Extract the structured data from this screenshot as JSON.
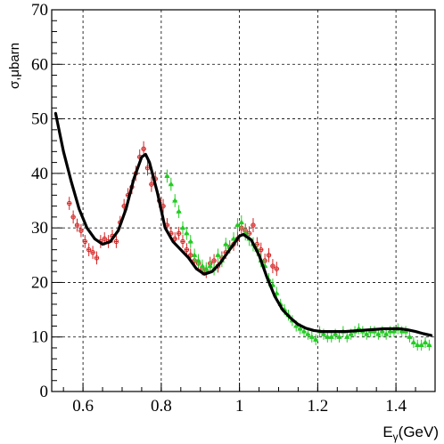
{
  "chart_data": {
    "type": "scatter",
    "xlabel": "E",
    "xlabel_sub": "γ",
    "xlabel_unit": "(GeV)",
    "ylabel": "σ,μbarn",
    "xlim": [
      0.52,
      1.5
    ],
    "ylim": [
      0,
      70
    ],
    "grid": true,
    "x_ticks": [
      0.6,
      0.8,
      1.0,
      1.2,
      1.4
    ],
    "x_tick_labels": [
      "0.6",
      "0.8",
      "1",
      "1.2",
      "1.4"
    ],
    "y_ticks": [
      0,
      10,
      20,
      30,
      40,
      50,
      60,
      70
    ],
    "y_tick_labels": [
      "0",
      "10",
      "20",
      "30",
      "40",
      "50",
      "60",
      "70"
    ],
    "colors": {
      "series_red": "#d42020",
      "series_green": "#22cc22",
      "fit_curve": "#000000",
      "grid": "#000000"
    },
    "series": [
      {
        "kind": "points_circle",
        "color": "#d42020",
        "x": [
          0.565,
          0.575,
          0.585,
          0.595,
          0.605,
          0.615,
          0.625,
          0.635,
          0.645,
          0.655,
          0.665,
          0.675,
          0.685,
          0.695,
          0.705,
          0.715,
          0.725,
          0.735,
          0.745,
          0.755,
          0.765,
          0.775,
          0.785,
          0.795,
          0.805,
          0.815,
          0.825,
          0.835,
          0.845,
          0.855,
          0.865,
          0.875,
          0.885,
          0.895,
          0.905,
          0.915,
          0.925,
          0.935,
          0.945,
          0.955,
          0.965,
          0.975,
          0.985,
          0.995,
          1.005,
          1.015,
          1.025,
          1.035,
          1.045,
          1.055,
          1.065,
          1.075,
          1.085,
          1.095
        ],
        "y": [
          34.5,
          32,
          30.5,
          29.5,
          27.5,
          26,
          25.5,
          24.5,
          27.5,
          28,
          27.5,
          28.5,
          27.5,
          31,
          34,
          36,
          37.5,
          40,
          43,
          44.5,
          41,
          38,
          39,
          35,
          34,
          30.5,
          29,
          28,
          29,
          27.5,
          26,
          25,
          24,
          23.5,
          22.5,
          22,
          23.5,
          24,
          23,
          24.5,
          25.5,
          26.5,
          27,
          28,
          30,
          29.5,
          29,
          30.5,
          27,
          26,
          24,
          25,
          23,
          22.5
        ],
        "err": [
          1.2,
          1.2,
          1.2,
          1.2,
          1.2,
          1.2,
          1.2,
          1.2,
          1.2,
          1.2,
          1.2,
          1.2,
          1.2,
          1.2,
          1.3,
          1.3,
          1.3,
          1.4,
          1.4,
          1.4,
          1.4,
          1.4,
          1.4,
          1.3,
          1.3,
          1.3,
          1.2,
          1.2,
          1.2,
          1.2,
          1.2,
          1.2,
          1.2,
          1.2,
          1.2,
          1.2,
          1.2,
          1.2,
          1.2,
          1.2,
          1.2,
          1.2,
          1.2,
          1.3,
          1.3,
          1.3,
          1.3,
          1.3,
          1.3,
          1.3,
          1.3,
          1.3,
          1.3,
          1.3
        ]
      },
      {
        "kind": "points_triangle",
        "color": "#22cc22",
        "x": [
          0.815,
          0.825,
          0.835,
          0.845,
          0.855,
          0.865,
          0.875,
          0.885,
          0.895,
          0.905,
          0.915,
          0.925,
          0.935,
          0.945,
          0.955,
          0.965,
          0.975,
          0.985,
          0.995,
          1.005,
          1.015,
          1.025,
          1.035,
          1.045,
          1.055,
          1.065,
          1.075,
          1.085,
          1.095,
          1.105,
          1.115,
          1.125,
          1.135,
          1.145,
          1.155,
          1.165,
          1.175,
          1.185,
          1.195,
          1.205,
          1.215,
          1.225,
          1.235,
          1.245,
          1.255,
          1.265,
          1.275,
          1.285,
          1.295,
          1.305,
          1.315,
          1.325,
          1.335,
          1.345,
          1.355,
          1.365,
          1.375,
          1.385,
          1.395,
          1.405,
          1.415,
          1.425,
          1.435,
          1.445,
          1.455,
          1.465,
          1.475,
          1.485
        ],
        "y": [
          39.5,
          38,
          35,
          33,
          30,
          29,
          27.5,
          25,
          24,
          23,
          22.5,
          23,
          22.5,
          25,
          24,
          27,
          26.5,
          28,
          30.5,
          31,
          29,
          28,
          27,
          26,
          24,
          23,
          20.5,
          19.5,
          18,
          16,
          15,
          14,
          13,
          12,
          11.5,
          11,
          10.5,
          10,
          9.5,
          11,
          10.5,
          10,
          10,
          10.5,
          10,
          11,
          10,
          10.5,
          11,
          11.5,
          11,
          10.5,
          11,
          11,
          10.5,
          11,
          10.5,
          11,
          11,
          11.5,
          11,
          11,
          10,
          9,
          8.5,
          8.5,
          9,
          8.5
        ],
        "err": [
          1.2,
          1.2,
          1.2,
          1.2,
          1.2,
          1.2,
          1.2,
          1.2,
          1.2,
          1.2,
          1.2,
          1.2,
          1.2,
          1.2,
          1.2,
          1.2,
          1.2,
          1.2,
          1.3,
          1.3,
          1.3,
          1.3,
          1.3,
          1.2,
          1.2,
          1.2,
          1.2,
          1.2,
          1.2,
          1.0,
          1.0,
          1.0,
          1.0,
          1.0,
          1.0,
          1.0,
          1.0,
          1.0,
          1.0,
          1.0,
          1.0,
          1.0,
          1.0,
          1.0,
          1.0,
          1.0,
          1.0,
          1.0,
          1.0,
          1.0,
          1.0,
          1.0,
          1.0,
          1.0,
          1.0,
          1.0,
          1.0,
          1.0,
          1.0,
          1.0,
          1.0,
          1.0,
          1.0,
          1.0,
          1.0,
          1.0,
          1.0,
          1.0
        ]
      },
      {
        "kind": "fit_curve",
        "color": "#000000",
        "x": [
          0.53,
          0.55,
          0.57,
          0.59,
          0.61,
          0.63,
          0.65,
          0.67,
          0.69,
          0.71,
          0.73,
          0.75,
          0.76,
          0.77,
          0.79,
          0.81,
          0.83,
          0.85,
          0.87,
          0.89,
          0.91,
          0.93,
          0.95,
          0.97,
          0.99,
          1.0,
          1.01,
          1.03,
          1.05,
          1.07,
          1.09,
          1.11,
          1.13,
          1.15,
          1.17,
          1.19,
          1.21,
          1.23,
          1.25,
          1.27,
          1.29,
          1.31,
          1.33,
          1.35,
          1.37,
          1.39,
          1.41,
          1.43,
          1.45,
          1.47,
          1.49
        ],
        "y": [
          51,
          44,
          38.5,
          33.5,
          30,
          28,
          27,
          27.5,
          29.5,
          33.5,
          39,
          43,
          43.5,
          42,
          36.5,
          30,
          27.5,
          26,
          24.5,
          22.5,
          21.5,
          22,
          23.5,
          25.5,
          27.5,
          28.5,
          28.8,
          27.8,
          25,
          21,
          17.5,
          15,
          13.5,
          12.3,
          11.6,
          11.2,
          11,
          11,
          11,
          11,
          11.1,
          11.2,
          11.3,
          11.4,
          11.5,
          11.5,
          11.5,
          11.3,
          11,
          10.6,
          10.3
        ]
      }
    ]
  }
}
